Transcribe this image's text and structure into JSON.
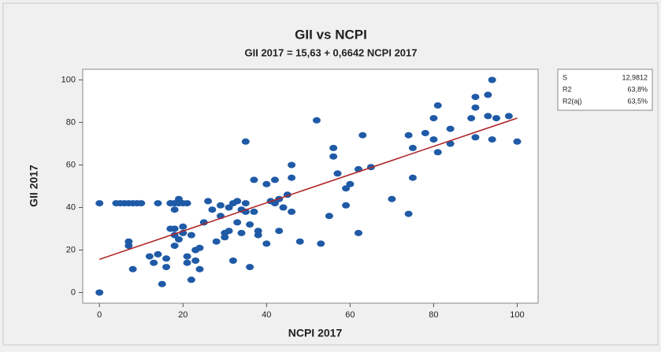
{
  "chart_data": {
    "type": "scatter",
    "title": "GII vs NCPI",
    "subtitle": "GII 2017 = 15,63 + 0,6642 NCPI 2017",
    "x_label": "NCPI 2017",
    "y_label": "GII 2017",
    "fit_line": {
      "intercept": 15.63,
      "slope": 0.6642,
      "color": "#b0282a"
    },
    "stats": [
      [
        "S",
        "12,9812"
      ],
      [
        "R2",
        "63,8%"
      ],
      [
        "R2(aj)",
        "63,5%"
      ]
    ],
    "color": "#1f5aa6",
    "xlim": [
      -4,
      105
    ],
    "ylim": [
      -5,
      105
    ],
    "xticks": [
      0,
      20,
      40,
      60,
      80,
      100
    ],
    "yticks": [
      0,
      20,
      40,
      60,
      80,
      100
    ],
    "x": [
      0,
      0,
      4,
      5,
      6,
      7,
      8,
      9,
      10,
      14,
      17,
      18,
      19,
      20,
      21,
      7,
      7,
      8,
      12,
      13,
      14,
      15,
      16,
      16,
      17,
      18,
      18,
      19,
      18,
      19,
      18,
      17,
      20,
      20,
      21,
      21,
      22,
      22,
      23,
      23,
      24,
      24,
      25,
      26,
      27,
      28,
      29,
      29,
      30,
      30,
      31,
      31,
      32,
      32,
      33,
      33,
      34,
      34,
      35,
      35,
      35,
      36,
      36,
      37,
      37,
      38,
      38,
      40,
      40,
      41,
      42,
      42,
      43,
      43,
      44,
      45,
      46,
      46,
      46,
      48,
      52,
      53,
      55,
      56,
      56,
      57,
      59,
      59,
      60,
      62,
      62,
      63,
      65,
      70,
      74,
      74,
      75,
      75,
      78,
      80,
      80,
      81,
      81,
      84,
      84,
      89,
      90,
      90,
      90,
      93,
      93,
      94,
      94,
      95,
      98,
      100
    ],
    "values": [
      0,
      42,
      42,
      42,
      42,
      42,
      42,
      42,
      42,
      42,
      42,
      42,
      42,
      42,
      42,
      24,
      22,
      11,
      17,
      14,
      18,
      4,
      12,
      16,
      30,
      30,
      27,
      25,
      22,
      44,
      39,
      42,
      28,
      31,
      17,
      14,
      27,
      6,
      20,
      15,
      21,
      11,
      33,
      43,
      39,
      24,
      36,
      41,
      28,
      26,
      40,
      29,
      42,
      15,
      33,
      43,
      39,
      28,
      71,
      42,
      38,
      12,
      32,
      38,
      53,
      29,
      27,
      23,
      51,
      43,
      42,
      53,
      29,
      44,
      40,
      46,
      38,
      60,
      54,
      24,
      81,
      23,
      36,
      68,
      64,
      56,
      41,
      49,
      51,
      28,
      58,
      74,
      59,
      44,
      37,
      74,
      54,
      68,
      75,
      82,
      72,
      66,
      88,
      70,
      77,
      82,
      92,
      73,
      87,
      93,
      83,
      72,
      100,
      82,
      83,
      71
    ]
  }
}
